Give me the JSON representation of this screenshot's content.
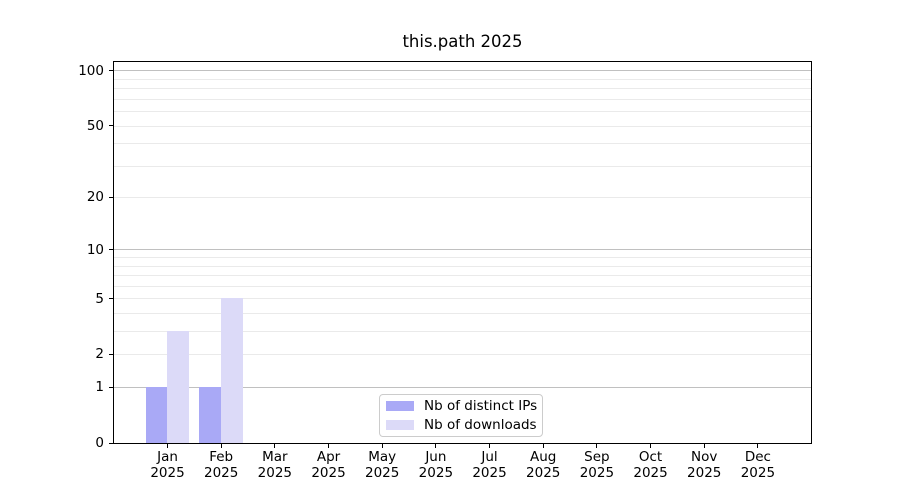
{
  "chart_data": {
    "type": "bar",
    "title": "this.path 2025",
    "y_scale": "log1p",
    "ylim": [
      0,
      111
    ],
    "grid": "on",
    "categories": [
      "Jan",
      "Feb",
      "Mar",
      "Apr",
      "May",
      "Jun",
      "Jul",
      "Aug",
      "Sep",
      "Oct",
      "Nov",
      "Dec"
    ],
    "x_year_label": "2025",
    "series": [
      {
        "name": "Nb of distinct IPs",
        "color": "#a9a9f6",
        "values": [
          1,
          1,
          0,
          0,
          0,
          0,
          0,
          0,
          0,
          0,
          0,
          0
        ]
      },
      {
        "name": "Nb of downloads",
        "color": "#dcdaf8",
        "values": [
          3,
          5,
          0,
          0,
          0,
          0,
          0,
          0,
          0,
          0,
          0,
          0
        ]
      }
    ],
    "y_ticks": [
      100,
      50,
      20,
      10,
      5,
      2,
      1,
      0
    ],
    "grid_major": [
      1,
      10,
      100
    ],
    "grid_minor": [
      2,
      3,
      4,
      5,
      6,
      7,
      8,
      9,
      20,
      30,
      40,
      50,
      60,
      70,
      80,
      90
    ],
    "legend": {
      "position": "lower center",
      "border_color": "#cccccc"
    },
    "axis_color": "#000000",
    "grid_major_color": "#c0c0c0",
    "grid_minor_color": "#eaeaea"
  }
}
